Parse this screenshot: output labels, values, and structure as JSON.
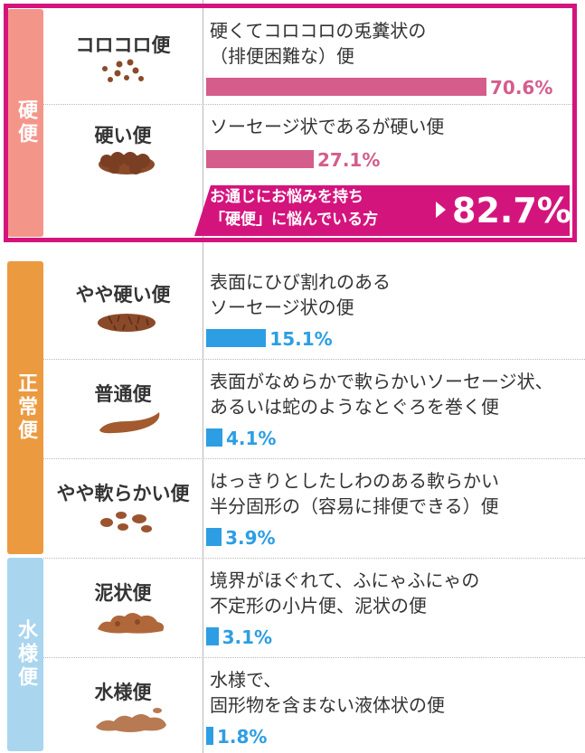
{
  "categories": [
    {
      "label": "硬便",
      "color": "#f4958a"
    },
    {
      "label": "正常便",
      "color": "#ec9a40"
    },
    {
      "label": "水様便",
      "color": "#a9d5ee"
    }
  ],
  "colors": {
    "hard_bar": "#d45d8c",
    "hard_text": "#d45d8c",
    "normal_bar": "#2d9ee3",
    "normal_text": "#2d9ee3",
    "frame": "#d4147d",
    "stool": "#8a4a2a"
  },
  "rows": [
    {
      "name": "コロコロ便",
      "desc": "硬くてコロコロの兎糞状の\n（排便困難な）便",
      "value": 70.6,
      "label": "70.6%",
      "group": "hard",
      "icon": "pellets-icon"
    },
    {
      "name": "硬い便",
      "desc": "ソーセージ状であるが硬い便",
      "value": 27.1,
      "label": "27.1%",
      "group": "hard",
      "icon": "lumpy-sausage-icon"
    },
    {
      "name": "やや硬い便",
      "desc": "表面にひび割れのある\nソーセージ状の便",
      "value": 15.1,
      "label": "15.1%",
      "group": "normal",
      "icon": "cracked-sausage-icon"
    },
    {
      "name": "普通便",
      "desc": "表面がなめらかで軟らかいソーセージ状、\nあるいは蛇のようなとぐろを巻く便",
      "value": 4.1,
      "label": "4.1%",
      "group": "normal",
      "icon": "smooth-sausage-icon"
    },
    {
      "name": "やや軟らかい便",
      "desc": "はっきりとしたしわのある軟らかい\n半分固形の（容易に排便できる）便",
      "value": 3.9,
      "label": "3.9%",
      "group": "normal",
      "icon": "soft-blobs-icon"
    },
    {
      "name": "泥状便",
      "desc": "境界がほぐれて、ふにゃふにゃの\n不定形の小片便、泥状の便",
      "value": 3.1,
      "label": "3.1%",
      "group": "normal",
      "icon": "mushy-icon"
    },
    {
      "name": "水様便",
      "desc": "水様で、\n固形物を含まない液体状の便",
      "value": 1.8,
      "label": "1.8%",
      "group": "normal",
      "icon": "watery-icon"
    }
  ],
  "callout": {
    "text": "お通じにお悩みを持ち\n「硬便」に悩んでいる方",
    "value": "82.7%"
  },
  "chart_data": {
    "type": "bar",
    "categories": [
      "コロコロ便",
      "硬い便",
      "やや硬い便",
      "普通便",
      "やや軟らかい便",
      "泥状便",
      "水様便"
    ],
    "values": [
      70.6,
      27.1,
      15.1,
      4.1,
      3.9,
      3.1,
      1.8
    ],
    "groups": {
      "硬便": [
        "コロコロ便",
        "硬い便"
      ],
      "正常便": [
        "やや硬い便",
        "普通便",
        "やや軟らかい便"
      ],
      "水様便": [
        "泥状便",
        "水様便"
      ]
    },
    "annotation": "お通じにお悩みを持ち「硬便」に悩んでいる方 82.7%"
  }
}
